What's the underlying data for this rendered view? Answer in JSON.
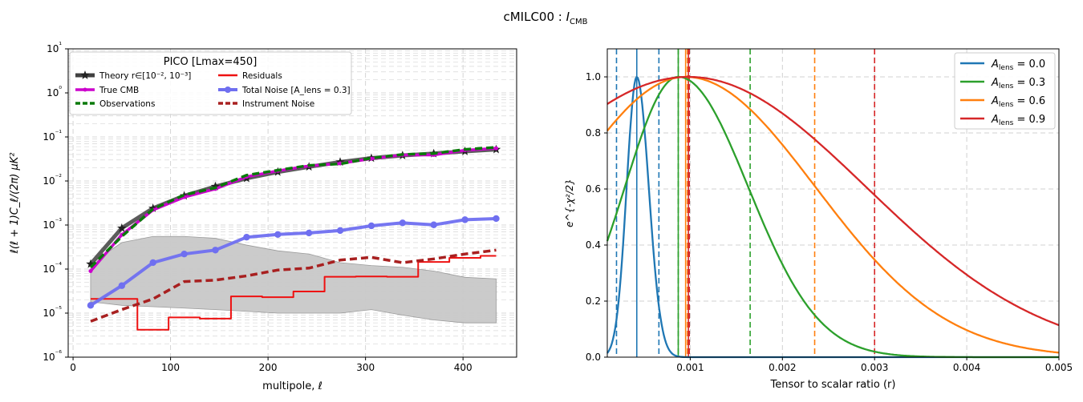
{
  "figure": {
    "suptitle": "cMILC00 : I",
    "suptitle_sub": "CMB"
  },
  "chart_data": [
    {
      "type": "line",
      "xlabel": "multipole, ℓ",
      "ylabel": "ℓ(ℓ + 1)C_ℓ/(2π)  μK²",
      "xlim": [
        -5,
        455
      ],
      "ylim_log10": [
        -6,
        1
      ],
      "yscale": "log",
      "grid": true,
      "xticks": [
        0,
        100,
        200,
        300,
        400
      ],
      "yticks": [
        {
          "exp": -6,
          "label": "10⁻⁶"
        },
        {
          "exp": -5,
          "label": "10⁻⁵"
        },
        {
          "exp": -4,
          "label": "10⁻⁴"
        },
        {
          "exp": -3,
          "label": "10⁻³"
        },
        {
          "exp": -2,
          "label": "10⁻²"
        },
        {
          "exp": -1,
          "label": "10⁻¹"
        },
        {
          "exp": 0,
          "label": "10⁰"
        },
        {
          "exp": 1,
          "label": "10¹"
        }
      ],
      "legend": {
        "title": "PICO [Lmax=450]",
        "placement": "top-left",
        "entries": [
          {
            "series": 0,
            "label": "Theory r∈[10⁻², 10⁻³]"
          },
          {
            "series": 1,
            "label": "True CMB"
          },
          {
            "series": 2,
            "label": "Observations"
          },
          {
            "series": 3,
            "label": "Residuals"
          },
          {
            "series": 4,
            "label": "Total Noise [A_lens = 0.3]"
          },
          {
            "series": 5,
            "label": "Instrument Noise"
          }
        ]
      },
      "x": [
        18,
        50,
        82,
        114,
        146,
        178,
        210,
        242,
        274,
        306,
        338,
        370,
        402,
        434
      ],
      "band": {
        "color": "#c8c8c8",
        "lower": [
          1.8e-05,
          1.5e-05,
          1.4e-05,
          1.3e-05,
          1.2e-05,
          1.1e-05,
          1e-05,
          1e-05,
          1e-05,
          1.2e-05,
          9e-06,
          7e-06,
          6e-06,
          6e-06
        ],
        "upper": [
          0.00013,
          0.0004,
          0.00055,
          0.00055,
          0.0005,
          0.00035,
          0.00026,
          0.00022,
          0.00014,
          0.00012,
          0.00011,
          9e-05,
          6.5e-05,
          6e-05
        ]
      },
      "series": [
        {
          "name": "Theory r∈[10⁻², 10⁻³]",
          "color": "#404040",
          "style": "solid",
          "marker": "star",
          "values": [
            0.00013,
            0.00085,
            0.0024,
            0.0046,
            0.0075,
            0.0115,
            0.016,
            0.021,
            0.027,
            0.033,
            0.038,
            0.042,
            0.047,
            0.052
          ]
        },
        {
          "name": "True CMB",
          "color": "#cc00cc",
          "style": "solid",
          "marker": "dot",
          "values": [
            9e-05,
            0.0006,
            0.0022,
            0.0043,
            0.0066,
            0.0125,
            0.017,
            0.022,
            0.025,
            0.032,
            0.039,
            0.039,
            0.05,
            0.055
          ]
        },
        {
          "name": "Observations",
          "color": "#0a7a0a",
          "style": "dashed",
          "marker": "none",
          "values": [
            0.00011,
            0.00055,
            0.0023,
            0.0048,
            0.007,
            0.0135,
            0.0175,
            0.0225,
            0.0245,
            0.033,
            0.04,
            0.042,
            0.052,
            0.058
          ]
        },
        {
          "name": "Residuals",
          "color": "#ee1111",
          "style": "steps",
          "marker": "none",
          "values": [
            2.1e-05,
            2.1e-05,
            4.2e-06,
            8e-06,
            7.5e-06,
            2.4e-05,
            2.3e-05,
            3.1e-05,
            6.7e-05,
            6.8e-05,
            6.7e-05,
            0.000145,
            0.00018,
            0.0002
          ]
        },
        {
          "name": "Total Noise [A_lens = 0.3]",
          "color": "#6f6ff0",
          "style": "solid",
          "marker": "dot",
          "values": [
            1.5e-05,
            4.2e-05,
            0.00014,
            0.00022,
            0.00027,
            0.00053,
            0.00061,
            0.00066,
            0.00075,
            0.00096,
            0.00112,
            0.00101,
            0.00132,
            0.0014
          ]
        },
        {
          "name": "Instrument Noise",
          "color": "#a82020",
          "style": "dashed",
          "marker": "none",
          "values": [
            6.5e-06,
            1.2e-05,
            2.1e-05,
            5.2e-05,
            5.6e-05,
            7e-05,
            9.5e-05,
            0.000105,
            0.00016,
            0.000185,
            0.00014,
            0.00017,
            0.00022,
            0.00027
          ]
        }
      ]
    },
    {
      "type": "line",
      "xlabel": "Tensor to scalar ratio (r)",
      "ylabel": "e^{-χ²/2}",
      "xlim": [
        0.0001,
        0.005
      ],
      "ylim": [
        0,
        1.1
      ],
      "grid": true,
      "xticks": [
        {
          "v": 0.001,
          "label": "0.001"
        },
        {
          "v": 0.002,
          "label": "0.002"
        },
        {
          "v": 0.003,
          "label": "0.003"
        },
        {
          "v": 0.004,
          "label": "0.004"
        },
        {
          "v": 0.005,
          "label": "0.005"
        }
      ],
      "yticks": [
        {
          "v": 0.0,
          "label": "0.0"
        },
        {
          "v": 0.2,
          "label": "0.2"
        },
        {
          "v": 0.4,
          "label": "0.4"
        },
        {
          "v": 0.6,
          "label": "0.6"
        },
        {
          "v": 0.8,
          "label": "0.8"
        },
        {
          "v": 1.0,
          "label": "1.0"
        }
      ],
      "legend": {
        "placement": "top-right"
      },
      "series": [
        {
          "name": "A_lens = 0.0",
          "legend_main": "A",
          "legend_sub": "lens",
          "legend_rest": " = 0.0",
          "color": "#1f77b4",
          "peak": 0.00042,
          "sigma_left": 0.00011,
          "sigma_right": 0.00013,
          "lower": 0.0002,
          "upper": 0.00066
        },
        {
          "name": "A_lens = 0.3",
          "legend_main": "A",
          "legend_sub": "lens",
          "legend_rest": " = 0.3",
          "color": "#2ca02c",
          "peak": 0.00087,
          "sigma_left": 0.00058,
          "sigma_right": 0.00076,
          "lower": 0.00087,
          "upper": 0.00165
        },
        {
          "name": "A_lens = 0.6",
          "legend_main": "A",
          "legend_sub": "lens",
          "legend_rest": " = 0.6",
          "color": "#ff7f0e",
          "peak": 0.00095,
          "sigma_left": 0.0013,
          "sigma_right": 0.00141,
          "lower": 0.00097,
          "upper": 0.00235
        },
        {
          "name": "A_lens = 0.9",
          "legend_main": "A",
          "legend_sub": "lens",
          "legend_rest": " = 0.9",
          "color": "#d62728",
          "peak": 0.00098,
          "sigma_left": 0.00195,
          "sigma_right": 0.00193,
          "lower": 0.00099,
          "upper": 0.003
        }
      ]
    }
  ]
}
